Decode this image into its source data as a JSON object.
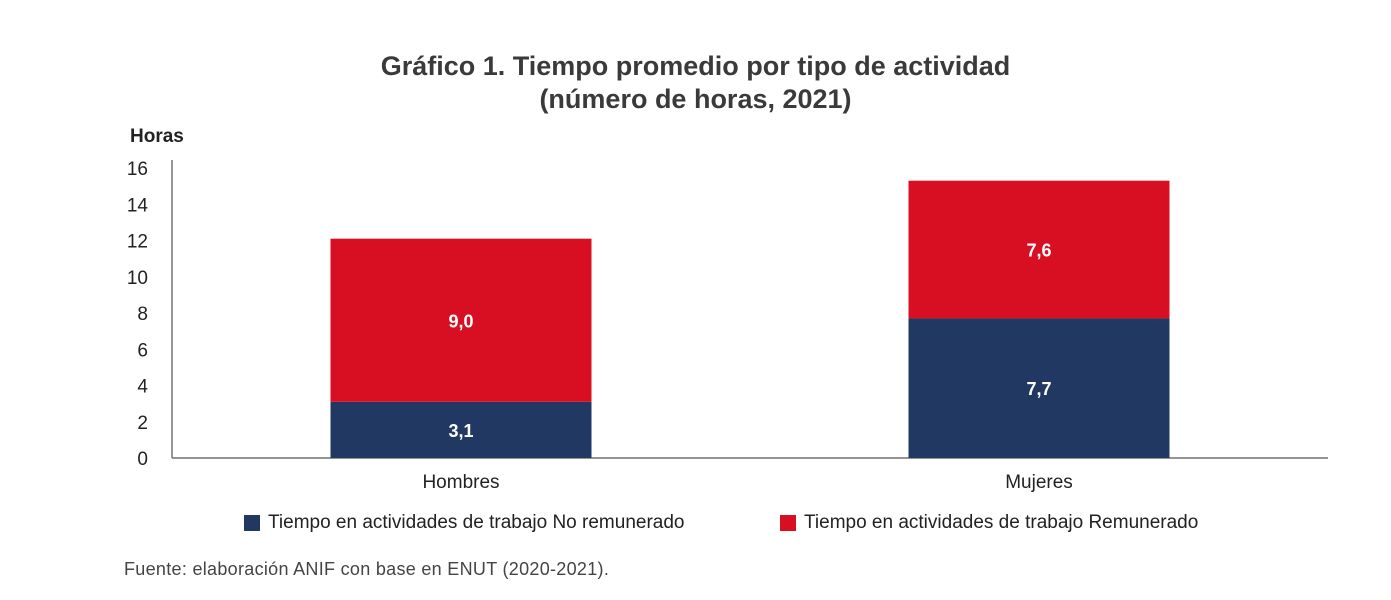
{
  "chart_data": {
    "type": "bar",
    "stacked": true,
    "title": "Gráfico 1. Tiempo promedio por tipo de actividad",
    "subtitle": "(número de horas, 2021)",
    "ylabel": "Horas",
    "xlabel": "",
    "ylim": [
      0,
      16
    ],
    "yticks": [
      0,
      2,
      4,
      6,
      8,
      10,
      12,
      14,
      16
    ],
    "categories": [
      "Hombres",
      "Mujeres"
    ],
    "series": [
      {
        "name": "Tiempo en actividades de trabajo No remunerado",
        "color": "#213862",
        "values": [
          3.1,
          7.7
        ],
        "labels": [
          "3,1",
          "7,7"
        ]
      },
      {
        "name": "Tiempo en actividades de trabajo Remunerado",
        "color": "#d80f22",
        "values": [
          9.0,
          7.6
        ],
        "labels": [
          "9,0",
          "7,6"
        ]
      }
    ],
    "grid": false,
    "legend_position": "bottom"
  },
  "source": "Fuente: elaboración ANIF con base en ENUT (2020-2021)."
}
